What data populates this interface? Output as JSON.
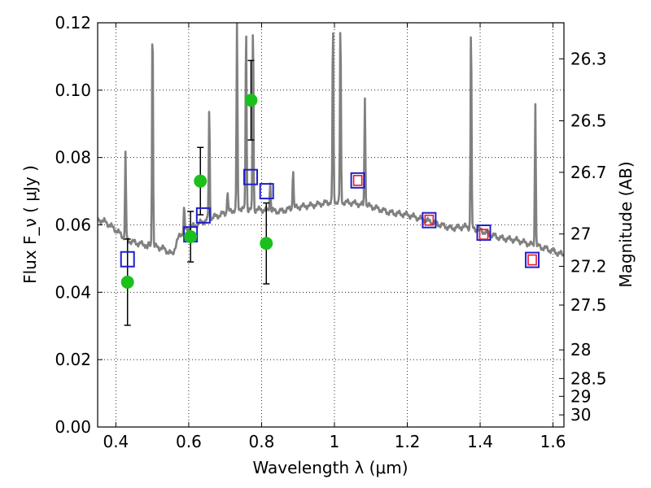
{
  "chart_data": {
    "type": "scatter",
    "xlabel": "Wavelength  λ (μm)",
    "ylabel": "Flux  F_ν  ( μJy )",
    "ylabel_right": "Magnitude (AB)",
    "xlim": [
      0.35,
      1.63
    ],
    "ylim": [
      0.0,
      0.12
    ],
    "grid": true,
    "x_ticks": [
      0.4,
      0.6,
      0.8,
      1.0,
      1.2,
      1.4,
      1.6
    ],
    "x_tick_labels": [
      "0.4",
      "0.6",
      "0.8",
      "1",
      "1.2",
      "1.4",
      "1.6"
    ],
    "y_ticks": [
      0.0,
      0.02,
      0.04,
      0.06,
      0.08,
      0.1,
      0.12
    ],
    "y_tick_labels": [
      "0.00",
      "0.02",
      "0.04",
      "0.06",
      "0.08",
      "0.10",
      "0.12"
    ],
    "right_ticks": [
      {
        "label": "26.3",
        "flux": 0.1093
      },
      {
        "label": "26.5",
        "flux": 0.0909
      },
      {
        "label": "26.7",
        "flux": 0.0756
      },
      {
        "label": "27",
        "flux": 0.0573
      },
      {
        "label": "27.2",
        "flux": 0.0477
      },
      {
        "label": "27.5",
        "flux": 0.0362
      },
      {
        "label": "28",
        "flux": 0.0229
      },
      {
        "label": "28.5",
        "flux": 0.0144
      },
      {
        "label": "29",
        "flux": 0.0091
      },
      {
        "label": "30",
        "flux": 0.0036
      }
    ],
    "series": [
      {
        "kind": "line",
        "color": "#808080",
        "continuum": [
          [
            0.35,
            0.0615
          ],
          [
            0.37,
            0.061
          ],
          [
            0.4,
            0.0585
          ],
          [
            0.43,
            0.0555
          ],
          [
            0.46,
            0.0545
          ],
          [
            0.5,
            0.0538
          ],
          [
            0.53,
            0.053
          ],
          [
            0.555,
            0.0512
          ],
          [
            0.575,
            0.057
          ],
          [
            0.6,
            0.059
          ],
          [
            0.63,
            0.0605
          ],
          [
            0.66,
            0.062
          ],
          [
            0.7,
            0.0635
          ],
          [
            0.74,
            0.065
          ],
          [
            0.78,
            0.0645
          ],
          [
            0.8,
            0.0645
          ],
          [
            0.85,
            0.064
          ],
          [
            0.9,
            0.0653
          ],
          [
            0.95,
            0.066
          ],
          [
            1.0,
            0.067
          ],
          [
            1.05,
            0.0665
          ],
          [
            1.1,
            0.0655
          ],
          [
            1.15,
            0.0637
          ],
          [
            1.2,
            0.063
          ],
          [
            1.24,
            0.0617
          ],
          [
            1.28,
            0.0604
          ],
          [
            1.32,
            0.059
          ],
          [
            1.36,
            0.0595
          ],
          [
            1.4,
            0.0585
          ],
          [
            1.43,
            0.057
          ],
          [
            1.46,
            0.056
          ],
          [
            1.5,
            0.0555
          ],
          [
            1.54,
            0.0542
          ],
          [
            1.58,
            0.053
          ],
          [
            1.63,
            0.051
          ]
        ],
        "lines": [
          {
            "x": 0.4265,
            "peak": 0.081
          },
          {
            "x": 0.486,
            "peak": 0.053
          },
          {
            "x": 0.5005,
            "peak": 0.057
          },
          {
            "x": 0.5007,
            "peak": 0.12
          },
          {
            "x": 0.5875,
            "peak": 0.065
          },
          {
            "x": 0.6563,
            "peak": 0.094
          },
          {
            "x": 0.6583,
            "peak": 0.063
          },
          {
            "x": 0.7065,
            "peak": 0.07
          },
          {
            "x": 0.7325,
            "peak": 0.12
          },
          {
            "x": 0.7575,
            "peak": 0.12
          },
          {
            "x": 0.7765,
            "peak": 0.12
          },
          {
            "x": 0.8236,
            "peak": 0.073
          },
          {
            "x": 0.8865,
            "peak": 0.077
          },
          {
            "x": 0.996,
            "peak": 0.12
          },
          {
            "x": 1.0165,
            "peak": 0.12
          },
          {
            "x": 1.0836,
            "peak": 0.098
          },
          {
            "x": 1.375,
            "peak": 0.12
          },
          {
            "x": 1.5515,
            "peak": 0.096
          }
        ]
      },
      {
        "kind": "points",
        "marker": "circle",
        "color": "#1cc01c",
        "x": [
          0.432,
          0.605,
          0.632,
          0.771,
          0.813
        ],
        "y": [
          0.043,
          0.0565,
          0.073,
          0.097,
          0.0545
        ],
        "yerr": [
          0.0128,
          0.0075,
          0.01,
          0.0118,
          0.012
        ]
      },
      {
        "kind": "points",
        "marker": "square-open",
        "color": "#1f1fcc",
        "x": [
          0.432,
          0.605,
          0.64,
          0.77,
          0.814,
          1.064,
          1.26,
          1.41,
          1.543
        ],
        "y": [
          0.0498,
          0.0572,
          0.0628,
          0.0742,
          0.07,
          0.0732,
          0.0614,
          0.0577,
          0.0496
        ]
      },
      {
        "kind": "points",
        "marker": "square-open",
        "color": "#e8162a",
        "x": [
          1.064,
          1.26,
          1.41,
          1.543
        ],
        "y": [
          0.0732,
          0.0614,
          0.0572,
          0.0496
        ]
      }
    ]
  }
}
